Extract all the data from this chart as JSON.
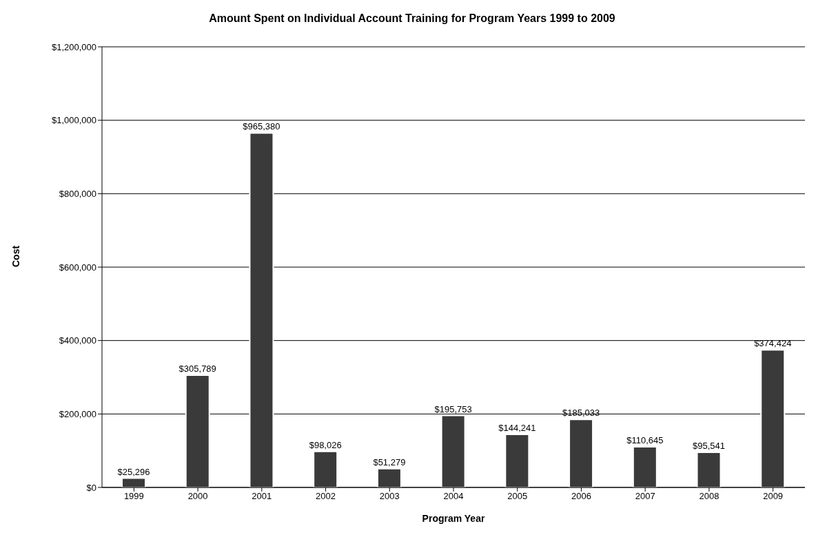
{
  "chart_data": {
    "type": "bar",
    "title": "Amount Spent on Individual Account Training for Program Years 1999 to 2009",
    "xlabel": "Program Year",
    "ylabel": "Cost",
    "categories": [
      "1999",
      "2000",
      "2001",
      "2002",
      "2003",
      "2004",
      "2005",
      "2006",
      "2007",
      "2008",
      "2009"
    ],
    "values": [
      25296,
      305789,
      965380,
      98026,
      51279,
      195753,
      144241,
      185033,
      110645,
      95541,
      374424
    ],
    "value_labels": [
      "$25,296",
      "$305,789",
      "$965,380",
      "$98,026",
      "$51,279",
      "$195,753",
      "$144,241",
      "$185,033",
      "$110,645",
      "$95,541",
      "$374,424"
    ],
    "color": "#3a3a3a",
    "ylim": [
      0,
      1200000
    ],
    "yticks": [
      {
        "value": 0,
        "label": "$0"
      },
      {
        "value": 200000,
        "label": "$200,000"
      },
      {
        "value": 400000,
        "label": "$400,000"
      },
      {
        "value": 600000,
        "label": "$600,000"
      },
      {
        "value": 800000,
        "label": "$800,000"
      },
      {
        "value": 1000000,
        "label": "$1,000,000"
      },
      {
        "value": 1200000,
        "label": "$1,200,000"
      }
    ],
    "grid": "y"
  }
}
